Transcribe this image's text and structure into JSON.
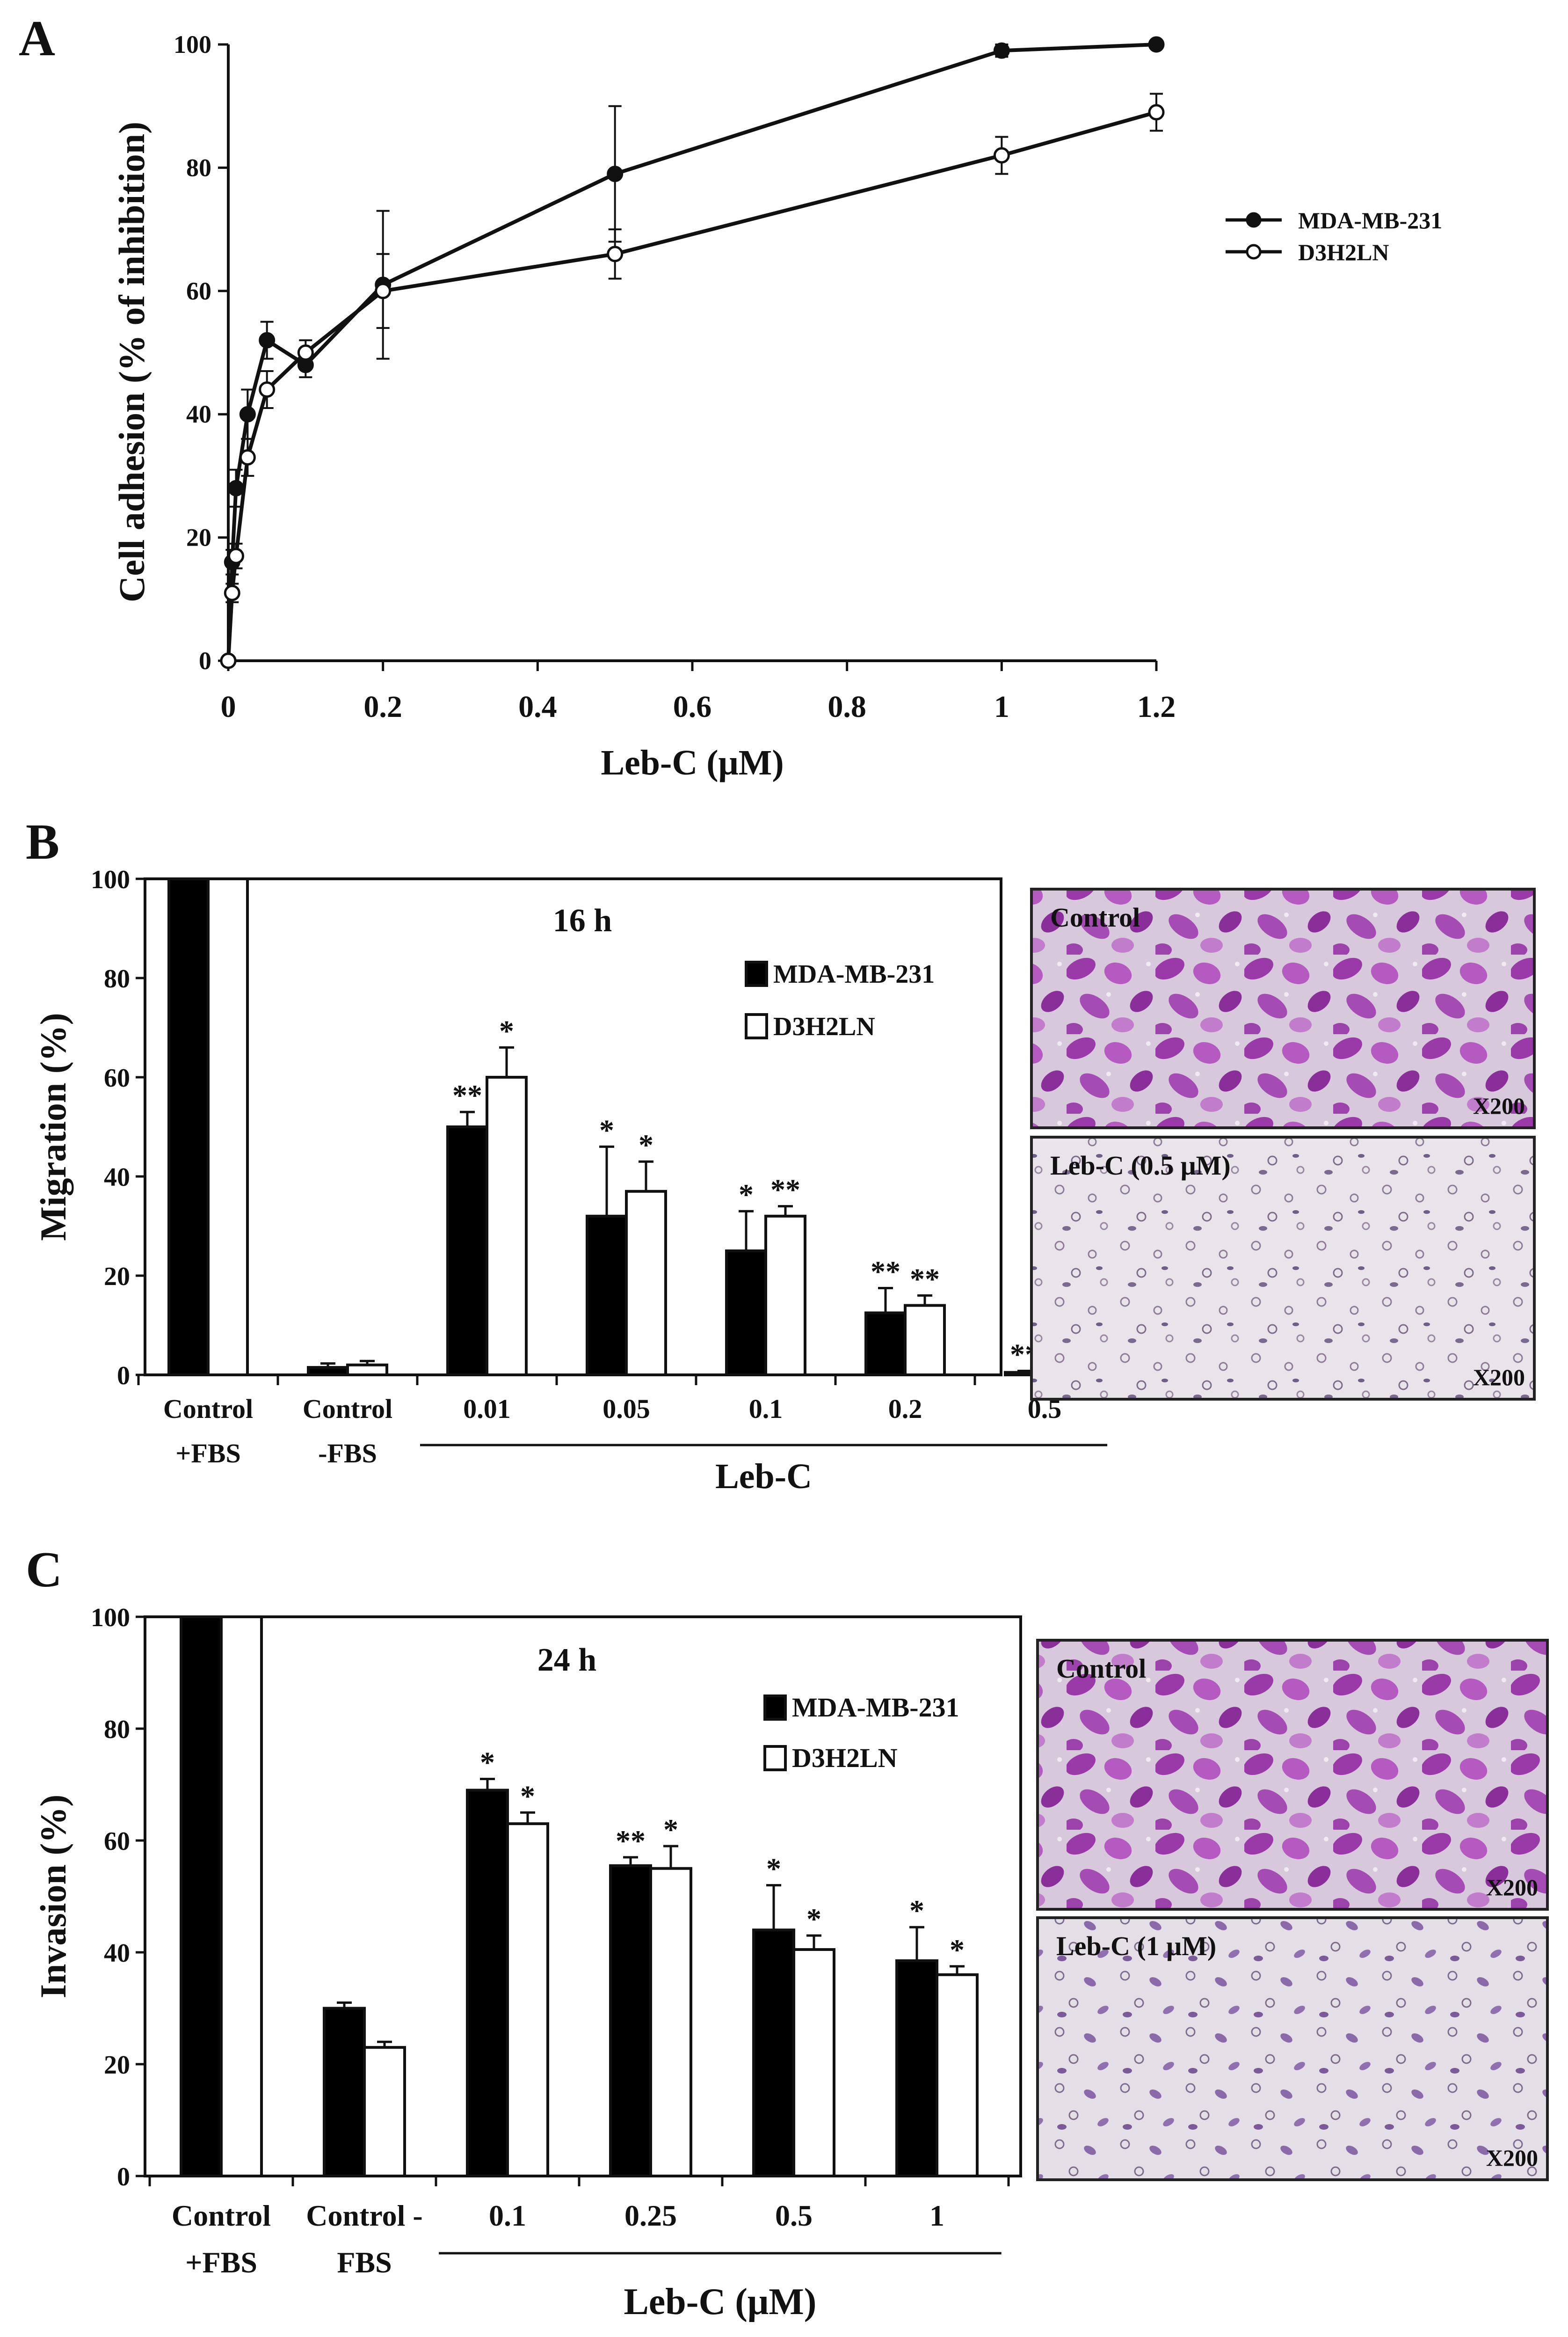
{
  "panels": [
    {
      "letter": "A"
    },
    {
      "letter": "B",
      "micrographs": [
        {
          "label": "Control",
          "magnification": "X200"
        },
        {
          "label": "Leb-C (0.5 μM)",
          "magnification": "X200"
        }
      ]
    },
    {
      "letter": "C",
      "micrographs": [
        {
          "label": "Control",
          "magnification": "X200"
        },
        {
          "label": "Leb-C (1 μM)",
          "magnification": "X200"
        }
      ]
    }
  ],
  "chart_data": [
    {
      "panel": "A",
      "type": "line",
      "xlabel": "Leb-C (μM)",
      "ylabel": "Cell adhesion (% of inhibition)",
      "xlim": [
        0,
        1.2
      ],
      "ylim": [
        0,
        100
      ],
      "xticks": [
        "0",
        "0.2",
        "0.4",
        "0.6",
        "0.8",
        "1",
        "1.2"
      ],
      "yticks": [
        "0",
        "20",
        "40",
        "60",
        "80",
        "100"
      ],
      "legend_position": "right",
      "series": [
        {
          "name": "MDA-MB-231",
          "marker": "filled-circle",
          "x": [
            0,
            0.005,
            0.01,
            0.025,
            0.05,
            0.1,
            0.2,
            0.5,
            1,
            1.2
          ],
          "y": [
            0,
            16,
            28,
            40,
            52,
            48,
            61,
            79,
            99,
            100
          ],
          "err": [
            0,
            2,
            3,
            4,
            3,
            2,
            12,
            11,
            1,
            0
          ]
        },
        {
          "name": "D3H2LN",
          "marker": "open-circle",
          "x": [
            0,
            0.005,
            0.01,
            0.025,
            0.05,
            0.1,
            0.2,
            0.5,
            1,
            1.2
          ],
          "y": [
            0,
            11,
            17,
            33,
            44,
            50,
            60,
            66,
            82,
            89
          ],
          "err": [
            0,
            1.5,
            2,
            3,
            3,
            2,
            6,
            4,
            3,
            3
          ]
        }
      ]
    },
    {
      "panel": "B",
      "type": "bar",
      "annotation": "16 h",
      "ylabel": "Migration (%)",
      "ylim": [
        0,
        100
      ],
      "yticks": [
        "0",
        "20",
        "40",
        "60",
        "80",
        "100"
      ],
      "categories": [
        [
          "Control",
          "+FBS"
        ],
        [
          "Control",
          "-FBS"
        ],
        [
          "0.01"
        ],
        [
          "0.05"
        ],
        [
          "0.1"
        ],
        [
          "0.2"
        ],
        [
          "0.5"
        ]
      ],
      "group_label": "Leb-C",
      "legend_position": "top-right",
      "series": [
        {
          "name": "MDA-MB-231",
          "fill": "#000000",
          "values": [
            100,
            1.5,
            50,
            32,
            25,
            12.5,
            0.5
          ],
          "err": [
            0,
            0.8,
            3,
            14,
            8,
            5,
            0.3
          ],
          "sig": [
            "",
            "",
            "**",
            "*",
            "*",
            "**",
            "**"
          ]
        },
        {
          "name": "D3H2LN",
          "fill": "#ffffff",
          "values": [
            100,
            2,
            60,
            37,
            32,
            14,
            1.5
          ],
          "err": [
            0,
            0.8,
            6,
            6,
            2,
            2,
            0.5
          ],
          "sig": [
            "",
            "",
            "*",
            "*",
            "**",
            "**",
            "**"
          ]
        }
      ]
    },
    {
      "panel": "C",
      "type": "bar",
      "annotation": "24 h",
      "ylabel": "Invasion (%)",
      "ylim": [
        0,
        100
      ],
      "yticks": [
        "0",
        "20",
        "40",
        "60",
        "80",
        "100"
      ],
      "categories": [
        [
          "Control",
          "+FBS"
        ],
        [
          "Control -",
          "FBS"
        ],
        [
          "0.1"
        ],
        [
          "0.25"
        ],
        [
          "0.5"
        ],
        [
          "1"
        ]
      ],
      "group_label": "Leb-C (μM)",
      "legend_position": "top-right",
      "series": [
        {
          "name": "MDA-MB-231",
          "fill": "#000000",
          "values": [
            100,
            30,
            69,
            55.5,
            44,
            38.5
          ],
          "err": [
            0,
            1,
            2,
            1.5,
            8,
            6
          ],
          "sig": [
            "",
            "",
            "*",
            "**",
            "*",
            "*"
          ]
        },
        {
          "name": "D3H2LN",
          "fill": "#ffffff",
          "values": [
            100,
            23,
            63,
            55,
            40.5,
            36
          ],
          "err": [
            0,
            1,
            2,
            4,
            2.5,
            1.5
          ],
          "sig": [
            "",
            "",
            "*",
            "*",
            "*",
            "*"
          ]
        }
      ]
    }
  ]
}
